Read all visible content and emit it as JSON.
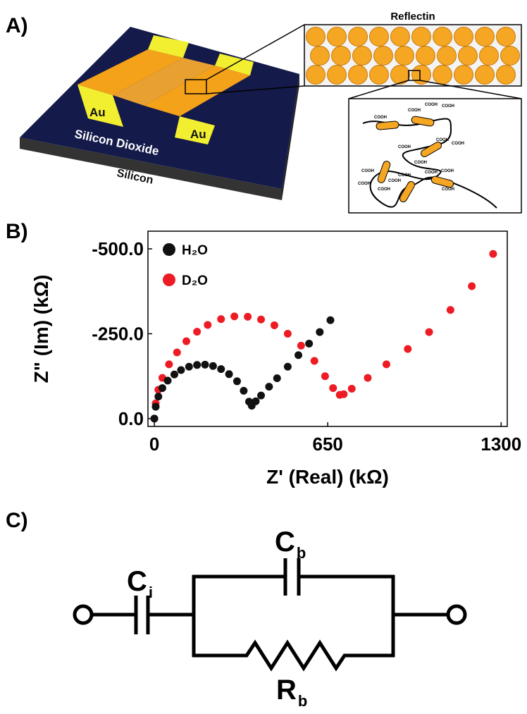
{
  "panels": {
    "a": {
      "label": "A)",
      "reflectin": "Reflectin",
      "au_left": "Au",
      "au_right": "Au",
      "oxide": "Silicon Dioxide",
      "silicon": "Silicon",
      "cooh": [
        "COOH",
        "COOH",
        "COOH",
        "COOH",
        "COOH",
        "COOH",
        "COOH",
        "COOH",
        "COOH",
        "COOH",
        "COOH",
        "COOH",
        "COOH",
        "COOH",
        "COOH",
        "COOH"
      ]
    },
    "b": {
      "label": "B)"
    },
    "c": {
      "label": "C)",
      "ci": {
        "main": "C",
        "sub": "i"
      },
      "cb": {
        "main": "C",
        "sub": "b"
      },
      "rb": {
        "main": "R",
        "sub": "b"
      }
    }
  },
  "chart_data": {
    "type": "scatter",
    "x_label": "Z' (Real) (kΩ)",
    "y_label": "Z\" (Im) (kΩ)",
    "xlim": [
      -24,
      1323
    ],
    "ylim": [
      23,
      -552
    ],
    "xticks": [
      0,
      650,
      1300
    ],
    "yticks": [
      {
        "value": -500,
        "label": "-500.0"
      },
      {
        "value": -250,
        "label": "-250.0"
      },
      {
        "value": 0,
        "label": "0.0"
      }
    ],
    "legend": "upper-left",
    "series": [
      {
        "name": "D₂O",
        "color": "#ed1c24",
        "x": [
          0,
          5,
          15,
          30,
          55,
          85,
          120,
          160,
          200,
          250,
          300,
          350,
          400,
          450,
          500,
          550,
          600,
          640,
          670,
          695,
          710,
          740,
          800,
          870,
          950,
          1030,
          1110,
          1190,
          1270
        ],
        "values": [
          0,
          -45,
          -85,
          -120,
          -160,
          -195,
          -228,
          -256,
          -276,
          -293,
          -301,
          -300,
          -292,
          -275,
          -250,
          -215,
          -170,
          -125,
          -90,
          -70,
          -72,
          -88,
          -120,
          -160,
          -205,
          -255,
          -320,
          -390,
          -485
        ]
      },
      {
        "name": "H₂O",
        "color": "#111111",
        "x": [
          0,
          5,
          15,
          30,
          50,
          75,
          100,
          130,
          160,
          190,
          220,
          250,
          280,
          310,
          335,
          355,
          365,
          380,
          400,
          430,
          460,
          500,
          540,
          580,
          620,
          660
        ],
        "values": [
          0,
          -35,
          -65,
          -90,
          -112,
          -130,
          -143,
          -153,
          -158,
          -159,
          -155,
          -146,
          -131,
          -110,
          -82,
          -50,
          -38,
          -51,
          -68,
          -94,
          -119,
          -153,
          -187,
          -221,
          -255,
          -290
        ]
      }
    ]
  }
}
